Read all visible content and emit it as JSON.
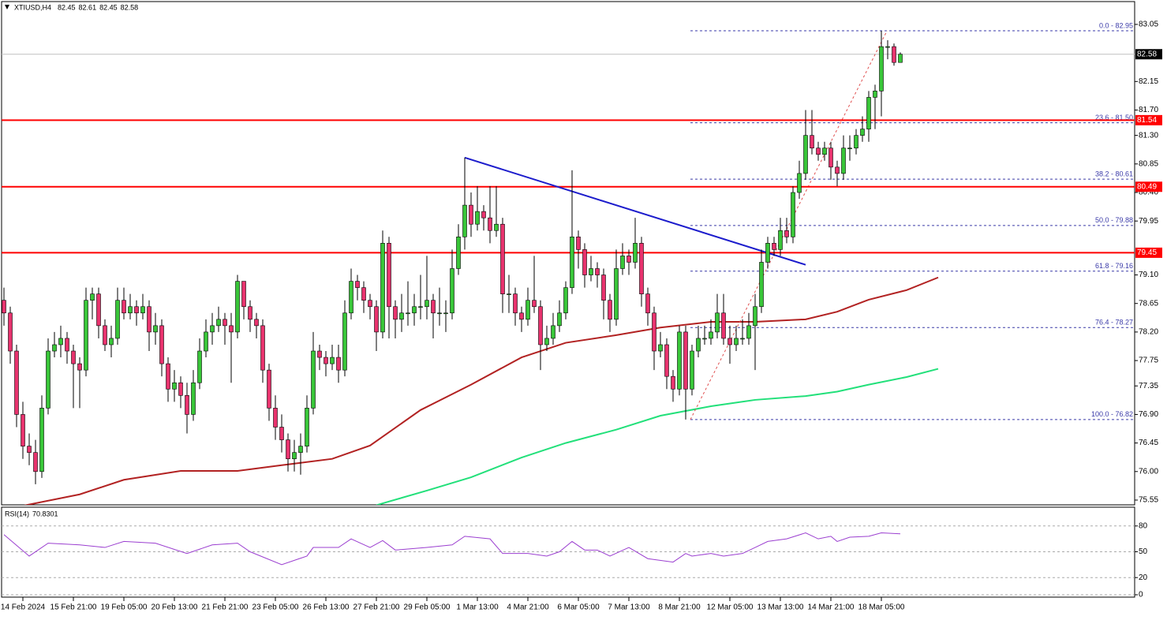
{
  "chart_data": [
    {
      "type": "candlestick",
      "title": "XTIUSD,H4",
      "ohlc_header": [
        82.45,
        82.61,
        82.45,
        82.58
      ],
      "up_color": "#39c639",
      "down_color": "#e8336e",
      "ylim": [
        75.475,
        83.41
      ],
      "yticks": [
        83.05,
        82.15,
        {
          "value": 81.7,
          "label": "81.70"
        },
        {
          "value": 81.3,
          "label": "81.30"
        },
        80.85,
        {
          "value": 80.4,
          "label": "80.40"
        },
        79.95,
        {
          "value": 79.1,
          "label": "79.10"
        },
        78.65,
        {
          "value": 78.2,
          "label": "78.20"
        },
        77.75,
        77.35,
        {
          "value": 76.9,
          "label": "76.90"
        },
        76.45,
        {
          "value": 76,
          "label": "76.00"
        },
        75.55
      ],
      "xticks": [
        {
          "value": 3,
          "label": "14 Feb 2024"
        },
        {
          "value": 11,
          "label": "15 Feb 21:00"
        },
        {
          "value": 19,
          "label": "19 Feb 05:00"
        },
        {
          "value": 27,
          "label": "20 Feb 13:00"
        },
        {
          "value": 35,
          "label": "21 Feb 21:00"
        },
        {
          "value": 43,
          "label": "23 Feb 05:00"
        },
        {
          "value": 51,
          "label": "26 Feb 13:00"
        },
        {
          "value": 59,
          "label": "27 Feb 21:00"
        },
        {
          "value": 67,
          "label": "29 Feb 05:00"
        },
        {
          "value": 75,
          "label": "1 Mar 13:00"
        },
        {
          "value": 83,
          "label": "4 Mar 21:00"
        },
        {
          "value": 91,
          "label": "6 Mar 05:00"
        },
        {
          "value": 99,
          "label": "7 Mar 13:00"
        },
        {
          "value": 107,
          "label": "8 Mar 21:00"
        },
        {
          "value": 115,
          "label": "12 Mar 05:00"
        },
        {
          "value": 123,
          "label": "13 Mar 13:00"
        },
        {
          "value": 131,
          "label": "14 Mar 21:00"
        },
        {
          "value": 139,
          "label": "18 Mar 05:00"
        }
      ],
      "candles": [
        [
          78.7,
          78.9,
          78.3,
          78.5
        ],
        [
          78.5,
          78.6,
          77.7,
          77.9
        ],
        [
          77.9,
          78.0,
          76.7,
          76.9
        ],
        [
          76.9,
          77.1,
          76.2,
          76.4
        ],
        [
          76.4,
          76.6,
          76.1,
          76.3
        ],
        [
          76.3,
          76.5,
          75.8,
          76.0
        ],
        [
          76.0,
          77.2,
          75.9,
          77.0
        ],
        [
          77.0,
          78.1,
          76.9,
          77.9
        ],
        [
          77.9,
          78.2,
          77.8,
          78.0
        ],
        [
          78.0,
          78.3,
          77.8,
          78.1
        ],
        [
          78.1,
          78.2,
          77.7,
          77.9
        ],
        [
          77.9,
          78.0,
          77.0,
          77.7
        ],
        [
          77.7,
          77.8,
          77.0,
          77.6
        ],
        [
          77.6,
          78.9,
          77.5,
          78.7
        ],
        [
          78.7,
          78.9,
          78.4,
          78.8
        ],
        [
          78.8,
          78.9,
          78.1,
          78.3
        ],
        [
          78.3,
          78.4,
          77.9,
          78.0
        ],
        [
          78.0,
          78.3,
          77.8,
          78.1
        ],
        [
          78.1,
          78.9,
          78.0,
          78.7
        ],
        [
          78.7,
          78.9,
          78.4,
          78.5
        ],
        [
          78.5,
          78.8,
          78.4,
          78.6
        ],
        [
          78.6,
          78.7,
          78.3,
          78.5
        ],
        [
          78.5,
          78.8,
          78.4,
          78.6
        ],
        [
          78.6,
          78.7,
          77.9,
          78.2
        ],
        [
          78.2,
          78.5,
          78.0,
          78.3
        ],
        [
          78.3,
          78.4,
          77.5,
          77.7
        ],
        [
          77.7,
          77.8,
          77.1,
          77.3
        ],
        [
          77.3,
          77.6,
          77.1,
          77.4
        ],
        [
          77.4,
          77.5,
          77.0,
          77.2
        ],
        [
          77.2,
          77.4,
          76.6,
          76.9
        ],
        [
          76.9,
          77.6,
          76.8,
          77.4
        ],
        [
          77.4,
          78.1,
          77.3,
          77.9
        ],
        [
          77.9,
          78.4,
          77.8,
          78.2
        ],
        [
          78.2,
          78.5,
          78.0,
          78.3
        ],
        [
          78.3,
          78.6,
          78.2,
          78.4
        ],
        [
          78.4,
          78.5,
          78.0,
          78.3
        ],
        [
          78.3,
          78.5,
          77.4,
          78.2
        ],
        [
          78.2,
          79.1,
          78.1,
          79.0
        ],
        [
          79.0,
          79.0,
          78.4,
          78.6
        ],
        [
          78.6,
          78.7,
          78.2,
          78.4
        ],
        [
          78.4,
          78.5,
          78.1,
          78.3
        ],
        [
          78.3,
          78.4,
          77.4,
          77.6
        ],
        [
          77.6,
          77.7,
          76.8,
          77.0
        ],
        [
          77.0,
          77.2,
          76.5,
          76.7
        ],
        [
          76.7,
          76.9,
          76.3,
          76.5
        ],
        [
          76.5,
          76.6,
          76.0,
          76.2
        ],
        [
          76.2,
          76.5,
          76.0,
          76.3
        ],
        [
          76.3,
          76.6,
          75.95,
          76.4
        ],
        [
          76.4,
          77.2,
          76.3,
          77.0
        ],
        [
          77.0,
          78.2,
          76.9,
          77.9
        ],
        [
          77.9,
          78.0,
          77.6,
          77.8
        ],
        [
          77.8,
          77.9,
          77.5,
          77.7
        ],
        [
          77.7,
          78.0,
          77.6,
          77.8
        ],
        [
          77.8,
          78.0,
          77.4,
          77.6
        ],
        [
          77.6,
          78.7,
          77.5,
          78.5
        ],
        [
          78.5,
          79.2,
          78.4,
          79.0
        ],
        [
          79.0,
          79.1,
          78.7,
          78.9
        ],
        [
          78.9,
          79.0,
          78.5,
          78.7
        ],
        [
          78.7,
          78.8,
          78.4,
          78.6
        ],
        [
          78.6,
          78.7,
          77.9,
          78.2
        ],
        [
          78.2,
          79.8,
          78.1,
          79.6
        ],
        [
          79.6,
          79.7,
          78.1,
          78.6
        ],
        [
          78.6,
          78.7,
          78.1,
          78.4
        ],
        [
          78.4,
          78.8,
          78.2,
          78.5
        ],
        [
          78.5,
          79.0,
          78.3,
          78.5
        ],
        [
          78.5,
          78.8,
          78.3,
          78.6
        ],
        [
          78.6,
          79.1,
          78.4,
          78.6
        ],
        [
          78.6,
          79.4,
          78.4,
          78.7
        ],
        [
          78.7,
          78.8,
          78.1,
          78.5
        ],
        [
          78.5,
          78.9,
          78.3,
          78.5
        ],
        [
          78.5,
          78.7,
          78.2,
          78.5
        ],
        [
          78.5,
          79.5,
          78.4,
          79.2
        ],
        [
          79.2,
          79.9,
          79.1,
          79.7
        ],
        [
          79.7,
          80.95,
          79.5,
          80.2
        ],
        [
          80.2,
          80.4,
          79.7,
          79.9
        ],
        [
          79.9,
          80.5,
          79.8,
          80.1
        ],
        [
          80.1,
          80.2,
          79.8,
          80.0
        ],
        [
          80.0,
          80.5,
          79.6,
          79.8
        ],
        [
          79.8,
          80.5,
          79.7,
          79.9
        ],
        [
          79.9,
          80.0,
          78.5,
          78.8
        ],
        [
          78.8,
          79.1,
          78.5,
          78.8
        ],
        [
          78.8,
          78.9,
          78.3,
          78.5
        ],
        [
          78.5,
          78.6,
          78.2,
          78.4
        ],
        [
          78.4,
          78.9,
          78.3,
          78.7
        ],
        [
          78.7,
          79.4,
          78.5,
          78.6
        ],
        [
          78.6,
          78.7,
          77.6,
          78.0
        ],
        [
          78.0,
          78.3,
          77.9,
          78.1
        ],
        [
          78.1,
          78.5,
          78.0,
          78.3
        ],
        [
          78.3,
          78.7,
          78.2,
          78.5
        ],
        [
          78.5,
          79.0,
          78.4,
          78.9
        ],
        [
          78.9,
          80.75,
          78.8,
          79.7
        ],
        [
          79.7,
          79.8,
          79.2,
          79.5
        ],
        [
          79.5,
          79.6,
          78.9,
          79.1
        ],
        [
          79.1,
          79.4,
          79.0,
          79.2
        ],
        [
          79.2,
          79.3,
          78.9,
          79.1
        ],
        [
          79.1,
          79.2,
          78.4,
          78.7
        ],
        [
          78.7,
          78.8,
          78.2,
          78.4
        ],
        [
          78.4,
          79.5,
          78.3,
          79.2
        ],
        [
          79.2,
          79.6,
          79.1,
          79.4
        ],
        [
          79.4,
          79.5,
          79.1,
          79.3
        ],
        [
          79.3,
          80.0,
          79.2,
          79.6
        ],
        [
          79.6,
          79.7,
          78.6,
          78.8
        ],
        [
          78.8,
          78.9,
          78.3,
          78.5
        ],
        [
          78.5,
          78.6,
          77.6,
          77.9
        ],
        [
          77.9,
          78.2,
          77.8,
          78.0
        ],
        [
          78.0,
          78.1,
          77.3,
          77.5
        ],
        [
          77.5,
          77.6,
          77.1,
          77.3
        ],
        [
          77.3,
          78.3,
          77.2,
          78.2
        ],
        [
          78.2,
          78.3,
          76.82,
          77.3
        ],
        [
          77.3,
          78.0,
          77.2,
          77.9
        ],
        [
          77.9,
          78.3,
          77.8,
          78.1
        ],
        [
          78.1,
          78.3,
          78.0,
          78.1
        ],
        [
          78.1,
          78.4,
          78.0,
          78.2
        ],
        [
          78.2,
          78.8,
          78.1,
          78.5
        ],
        [
          78.5,
          78.8,
          78.0,
          78.1
        ],
        [
          78.1,
          78.3,
          77.7,
          78.0
        ],
        [
          78.0,
          78.3,
          77.9,
          78.1
        ],
        [
          78.1,
          78.4,
          78.0,
          78.1
        ],
        [
          78.1,
          78.5,
          78.0,
          78.3
        ],
        [
          78.3,
          78.8,
          77.6,
          78.6
        ],
        [
          78.6,
          79.5,
          78.5,
          79.3
        ],
        [
          79.3,
          79.7,
          79.2,
          79.6
        ],
        [
          79.6,
          79.7,
          79.4,
          79.5
        ],
        [
          79.5,
          80.0,
          79.4,
          79.8
        ],
        [
          79.8,
          80.0,
          79.6,
          79.7
        ],
        [
          79.7,
          80.5,
          79.6,
          80.4
        ],
        [
          80.4,
          80.9,
          80.3,
          80.7
        ],
        [
          80.7,
          81.7,
          80.6,
          81.3
        ],
        [
          81.3,
          81.7,
          81.0,
          81.1
        ],
        [
          81.1,
          81.2,
          80.9,
          81.0
        ],
        [
          81.0,
          81.2,
          80.9,
          81.1
        ],
        [
          81.1,
          81.2,
          80.6,
          80.8
        ],
        [
          80.8,
          80.9,
          80.5,
          80.7
        ],
        [
          80.7,
          81.3,
          80.6,
          81.1
        ],
        [
          81.1,
          81.3,
          80.9,
          81.1
        ],
        [
          81.1,
          81.4,
          81.0,
          81.3
        ],
        [
          81.3,
          81.6,
          81.2,
          81.4
        ],
        [
          81.4,
          82.0,
          81.2,
          81.9
        ],
        [
          81.9,
          82.1,
          81.4,
          82.0
        ],
        [
          82.0,
          82.95,
          81.6,
          82.7
        ],
        [
          82.7,
          82.8,
          82.5,
          82.7
        ],
        [
          82.7,
          82.75,
          82.4,
          82.45
        ],
        [
          82.45,
          82.61,
          82.45,
          82.58
        ]
      ],
      "moving_averages": [
        {
          "color": "#b22222",
          "x": [
            0,
            12,
            19,
            28,
            37,
            44,
            52,
            58,
            66,
            74,
            82,
            89,
            97,
            104,
            112,
            119,
            127,
            132,
            137,
            143,
            148
          ],
          "values": [
            75.4,
            75.64,
            75.87,
            76.01,
            76.01,
            76.1,
            76.2,
            76.41,
            76.97,
            77.37,
            77.8,
            78.03,
            78.15,
            78.27,
            78.36,
            78.36,
            78.4,
            78.52,
            78.71,
            78.86,
            79.06
          ]
        },
        {
          "color": "#22e07a",
          "x": [
            59,
            67,
            74,
            82,
            89,
            97,
            104,
            112,
            119,
            127,
            132,
            137,
            143,
            148
          ],
          "values": [
            75.47,
            75.7,
            75.91,
            76.22,
            76.45,
            76.66,
            76.88,
            77.03,
            77.13,
            77.19,
            77.26,
            77.37,
            77.49,
            77.62
          ]
        }
      ],
      "levels": {
        "color": "#ff0000",
        "values": [
          81.54,
          80.49,
          79.45
        ]
      },
      "current_price": {
        "color": "#c0c0c0",
        "value": 82.58
      },
      "trendline": {
        "color": "#1c1ccc",
        "x": [
          73,
          127
        ],
        "values": [
          80.95,
          79.26
        ]
      },
      "fibonacci": {
        "color": "#3a3aa8",
        "x": [
          108.75,
          139.9
        ],
        "values": [
          76.82,
          82.95
        ],
        "levels": [
          {
            "value": 82.95,
            "label": "0.0 - 82.95"
          },
          {
            "value": 81.5,
            "label": "23.6 - 81.50"
          },
          {
            "value": 80.61,
            "label": "38.2 - 80.61"
          },
          {
            "value": 79.88,
            "label": "50.0 - 79.88"
          },
          {
            "value": 79.16,
            "label": "61.8 - 79.16"
          },
          {
            "value": 78.27,
            "label": "76.4 - 78.27"
          },
          {
            "value": 76.82,
            "label": "100.0 - 76.82"
          }
        ]
      }
    },
    {
      "type": "line",
      "title": "RSI(14)",
      "value": 70.8301,
      "color": "#9b3fd0",
      "ylim": [
        0,
        100
      ],
      "yticks": [
        80,
        50,
        20,
        0
      ],
      "x": [
        0,
        4,
        7,
        12,
        16,
        19,
        24,
        29,
        33,
        37,
        39,
        44,
        48,
        49,
        53,
        55,
        58,
        60,
        62,
        67,
        71,
        73,
        77,
        79,
        83,
        86,
        88,
        90,
        92,
        94,
        96,
        99,
        102,
        106,
        108,
        109,
        112,
        114,
        117,
        119,
        121,
        124,
        127,
        129,
        131,
        132,
        134,
        137,
        139,
        142
      ],
      "values": [
        70,
        45,
        60,
        58,
        55,
        62,
        60,
        48,
        58,
        60,
        50,
        35,
        45,
        55,
        55,
        65,
        55,
        63,
        52,
        55,
        58,
        68,
        65,
        48,
        48,
        45,
        50,
        62,
        52,
        52,
        45,
        55,
        42,
        38,
        48,
        45,
        48,
        45,
        48,
        55,
        62,
        65,
        72,
        65,
        68,
        62,
        67,
        68,
        72,
        70.8301
      ]
    }
  ]
}
